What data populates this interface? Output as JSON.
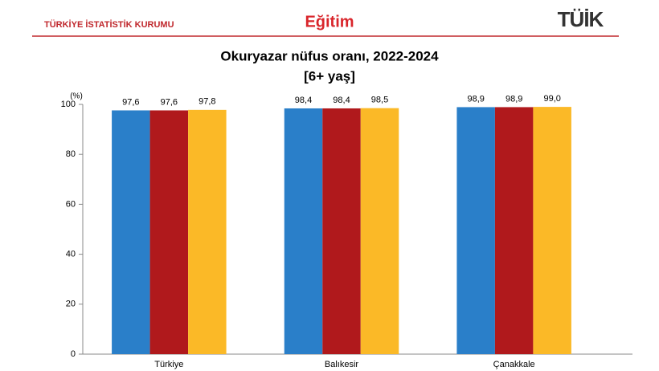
{
  "header": {
    "institution": "TÜRKİYE İSTATİSTİK KURUMU",
    "section": "Eğitim",
    "logo": "TÜİK"
  },
  "chart_data": {
    "type": "bar",
    "title": "Okuryazar nüfus oranı, 2022-2024",
    "subtitle": "[6+ yaş]",
    "y_unit": "(%)",
    "categories": [
      "Türkiye",
      "Balıkesir",
      "Çanakkale"
    ],
    "series": [
      {
        "color": "#2a7fc9",
        "values": [
          97.6,
          98.4,
          98.9
        ],
        "value_labels": [
          "97,6",
          "98,4",
          "98,9"
        ]
      },
      {
        "color": "#b0191c",
        "values": [
          97.6,
          98.4,
          98.9
        ],
        "value_labels": [
          "97,6",
          "98,4",
          "98,9"
        ]
      },
      {
        "color": "#fbb927",
        "values": [
          97.8,
          98.5,
          99.0
        ],
        "value_labels": [
          "97,8",
          "98,5",
          "99,0"
        ]
      }
    ],
    "ylim": [
      0,
      100
    ],
    "yticks": [
      0,
      20,
      40,
      60,
      80,
      100
    ],
    "grid": false
  }
}
